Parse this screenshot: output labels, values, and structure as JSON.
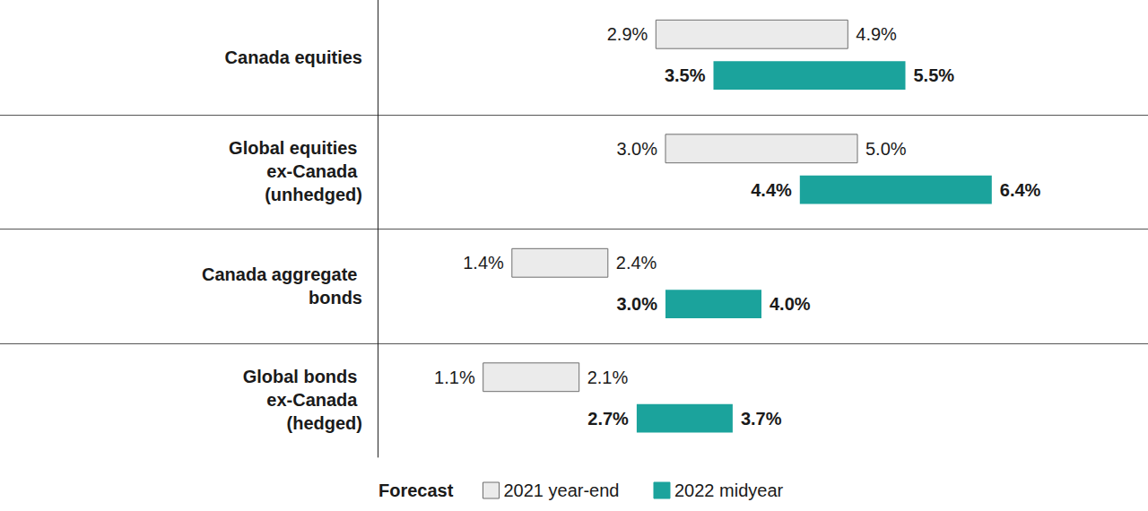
{
  "chart_data": {
    "type": "bar",
    "orientation": "horizontal",
    "categories": [
      "Canada equities",
      "Global equities ex-Canada (unhedged)",
      "Canada aggregate bonds",
      "Global bonds ex-Canada (hedged)"
    ],
    "series": [
      {
        "name": "2021 year-end",
        "color": "#ebebeb",
        "values": [
          [
            2.9,
            4.9
          ],
          [
            3.0,
            5.0
          ],
          [
            1.4,
            2.4
          ],
          [
            1.1,
            2.1
          ]
        ],
        "value_labels": [
          [
            "2.9%",
            "4.9%"
          ],
          [
            "3.0%",
            "5.0%"
          ],
          [
            "1.4%",
            "2.4%"
          ],
          [
            "1.1%",
            "2.1%"
          ]
        ]
      },
      {
        "name": "2022 midyear",
        "color": "#1ba39c",
        "values": [
          [
            3.5,
            5.5
          ],
          [
            4.4,
            6.4
          ],
          [
            3.0,
            4.0
          ],
          [
            2.7,
            3.7
          ]
        ],
        "value_labels": [
          [
            "3.5%",
            "5.5%"
          ],
          [
            "4.4%",
            "6.4%"
          ],
          [
            "3.0%",
            "4.0%"
          ],
          [
            "2.7%",
            "3.7%"
          ]
        ]
      }
    ],
    "xlim": [
      0,
      8
    ],
    "grid": false,
    "tick_labels": false,
    "data_labels": true,
    "legend": "bottom",
    "legend_title": "Forecast"
  }
}
